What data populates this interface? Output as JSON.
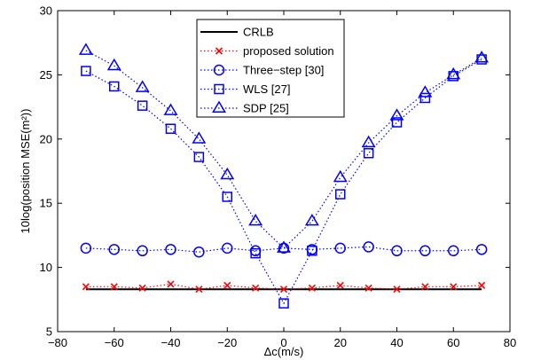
{
  "chart_data": {
    "type": "line",
    "title": "",
    "xlabel": "Δc(m/s)",
    "ylabel": "10log(position MSE(m²))",
    "xlim": [
      -80,
      80
    ],
    "ylim": [
      5,
      30
    ],
    "xticks": [
      -80,
      -60,
      -40,
      -20,
      0,
      20,
      40,
      60,
      80
    ],
    "yticks": [
      5,
      10,
      15,
      20,
      25,
      30
    ],
    "x": [
      -70,
      -60,
      -50,
      -40,
      -30,
      -20,
      -10,
      0,
      10,
      20,
      30,
      40,
      50,
      60,
      70
    ],
    "grid": false,
    "legend_position": "top-center",
    "series": [
      {
        "name": "CRLB",
        "color": "#000000",
        "line": "solid",
        "marker": "none",
        "values": [
          8.3,
          8.3,
          8.3,
          8.3,
          8.3,
          8.3,
          8.3,
          8.3,
          8.3,
          8.3,
          8.3,
          8.3,
          8.3,
          8.3,
          8.3
        ]
      },
      {
        "name": "proposed solution",
        "color": "#ff0000",
        "line": "dotted",
        "marker": "x",
        "values": [
          8.5,
          8.5,
          8.4,
          8.7,
          8.3,
          8.6,
          8.4,
          8.3,
          8.4,
          8.6,
          8.4,
          8.3,
          8.5,
          8.5,
          8.6
        ]
      },
      {
        "name": "Three−step [30]",
        "color": "#0000ff",
        "line": "dotted",
        "marker": "circle",
        "values": [
          11.5,
          11.4,
          11.3,
          11.4,
          11.2,
          11.5,
          11.3,
          11.5,
          11.4,
          11.5,
          11.6,
          11.3,
          11.3,
          11.3,
          11.4
        ]
      },
      {
        "name": "WLS [27]",
        "color": "#0000ff",
        "line": "dotted",
        "marker": "square",
        "values": [
          25.3,
          24.1,
          22.6,
          20.8,
          18.6,
          15.5,
          11.1,
          7.2,
          11.3,
          15.7,
          18.9,
          21.3,
          23.2,
          24.9,
          26.2
        ]
      },
      {
        "name": "SDP [25]",
        "color": "#0000ff",
        "line": "dotted",
        "marker": "triangle",
        "values": [
          26.9,
          25.7,
          24.0,
          22.2,
          20.0,
          17.2,
          13.6,
          11.5,
          13.6,
          17.0,
          19.7,
          21.8,
          23.6,
          25.0,
          26.3
        ]
      }
    ]
  }
}
